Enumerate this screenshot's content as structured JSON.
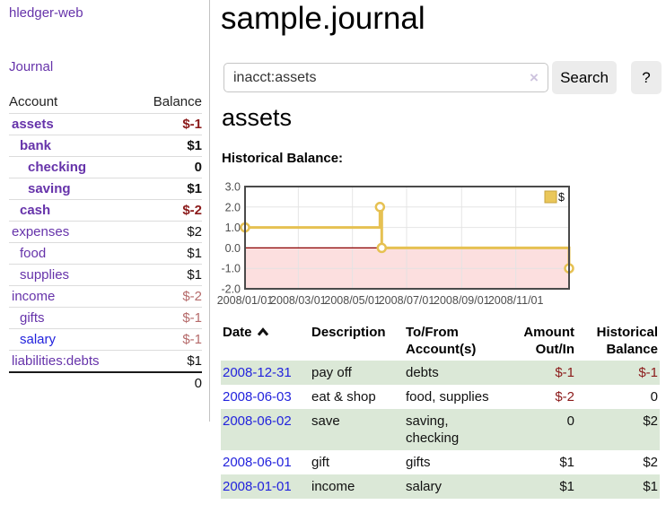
{
  "sidebar": {
    "app_title": "hledger-web",
    "journal_label": "Journal",
    "accounts_table": {
      "headers": [
        "Account",
        "Balance"
      ],
      "rows": [
        {
          "account": "assets",
          "level": 1,
          "bold": true,
          "color": "purple",
          "balance": "$-1",
          "balance_style": "negative-dark",
          "balance_bold": true
        },
        {
          "account": "bank",
          "level": 2,
          "bold": true,
          "color": "purple",
          "balance": "$1",
          "balance_style": "normal",
          "balance_bold": true
        },
        {
          "account": "checking",
          "level": 3,
          "bold": true,
          "color": "purple",
          "balance": "0",
          "balance_style": "normal",
          "balance_bold": true
        },
        {
          "account": "saving",
          "level": 3,
          "bold": true,
          "color": "purple",
          "balance": "$1",
          "balance_style": "normal",
          "balance_bold": true
        },
        {
          "account": "cash",
          "level": 2,
          "bold": true,
          "color": "purple",
          "balance": "$-2",
          "balance_style": "negative-dark",
          "balance_bold": true
        },
        {
          "account": "expenses",
          "level": 1,
          "bold": false,
          "color": "purple",
          "balance": "$2",
          "balance_style": "normal",
          "balance_bold": false
        },
        {
          "account": "food",
          "level": 2,
          "bold": false,
          "color": "purple",
          "balance": "$1",
          "balance_style": "normal",
          "balance_bold": false
        },
        {
          "account": "supplies",
          "level": 2,
          "bold": false,
          "color": "purple",
          "balance": "$1",
          "balance_style": "normal",
          "balance_bold": false
        },
        {
          "account": "income",
          "level": 1,
          "bold": false,
          "color": "purple",
          "balance": "$-2",
          "balance_style": "negative-soft",
          "balance_bold": false
        },
        {
          "account": "gifts",
          "level": 2,
          "bold": false,
          "color": "purple",
          "balance": "$-1",
          "balance_style": "negative-soft",
          "balance_bold": false
        },
        {
          "account": "salary",
          "level": 2,
          "bold": false,
          "color": "blue",
          "balance": "$-1",
          "balance_style": "negative-soft",
          "balance_bold": false
        },
        {
          "account": "liabilities:debts",
          "level": 1,
          "bold": false,
          "color": "purple",
          "balance": "$1",
          "balance_style": "normal",
          "balance_bold": false
        }
      ],
      "total": "0"
    }
  },
  "main": {
    "title": "sample.journal",
    "search": {
      "value": "inacct:assets",
      "clear_glyph": "×",
      "button_label": "Search",
      "help_label": "?"
    },
    "account_heading": "assets",
    "chart_label": "Historical Balance:",
    "register_table": {
      "columns": [
        {
          "lines": [
            "Date"
          ],
          "align": "left",
          "sorted": "asc"
        },
        {
          "lines": [
            "Description"
          ],
          "align": "left"
        },
        {
          "lines": [
            "To/From",
            "Account(s)"
          ],
          "align": "left"
        },
        {
          "lines": [
            "Amount",
            "Out/In"
          ],
          "align": "right"
        },
        {
          "lines": [
            "Historical",
            "Balance"
          ],
          "align": "right"
        }
      ],
      "rows": [
        {
          "date": "2008-12-31",
          "description": "pay off",
          "accounts": "debts",
          "amount": "$-1",
          "amount_style": "negative-dark",
          "balance": "$-1",
          "balance_style": "negative-dark"
        },
        {
          "date": "2008-06-03",
          "description": "eat & shop",
          "accounts": "food, supplies",
          "amount": "$-2",
          "amount_style": "negative-dark",
          "balance": "0",
          "balance_style": "normal"
        },
        {
          "date": "2008-06-02",
          "description": "save",
          "accounts": "saving, checking",
          "amount": "0",
          "amount_style": "normal",
          "balance": "$2",
          "balance_style": "normal"
        },
        {
          "date": "2008-06-01",
          "description": "gift",
          "accounts": "gifts",
          "amount": "$1",
          "amount_style": "normal",
          "balance": "$2",
          "balance_style": "normal"
        },
        {
          "date": "2008-01-01",
          "description": "income",
          "accounts": "salary",
          "amount": "$1",
          "amount_style": "normal",
          "balance": "$1",
          "balance_style": "normal"
        }
      ]
    }
  },
  "chart_data": {
    "type": "line",
    "title": "Historical Balance",
    "step": true,
    "series": [
      {
        "name": "$",
        "points": [
          [
            "2008-01-01",
            1
          ],
          [
            "2008-06-01",
            2
          ],
          [
            "2008-06-03",
            0
          ],
          [
            "2008-12-31",
            -1
          ]
        ]
      }
    ],
    "x_ticks": [
      {
        "date": "2008-01-01",
        "label": "2008/01/01"
      },
      {
        "date": "2008-03-01",
        "label": "2008/03/01"
      },
      {
        "date": "2008-05-01",
        "label": "2008/05/01"
      },
      {
        "date": "2008-07-01",
        "label": "2008/07/01"
      },
      {
        "date": "2008-09-01",
        "label": "2008/09/01"
      },
      {
        "date": "2008-11-01",
        "label": "2008/11/01"
      }
    ],
    "y_ticks": [
      "3.0",
      "2.0",
      "1.0",
      "0.0",
      "-1.0",
      "-2.0"
    ],
    "ylim": [
      -2,
      3
    ],
    "x_range_days": [
      "2008-01-01",
      "2008-12-31"
    ],
    "legend": {
      "label": "$",
      "position": "top-right"
    },
    "grid": true,
    "colors": {
      "line": "#e6c152",
      "marker_fill": "#ffffff",
      "negative_region": "#fcdfdf",
      "zero_line": "#8b0000",
      "grid": "#e2e2e2",
      "border": "#4a4a4a",
      "legend_fill": "#eac75a",
      "legend_border": "#c7a33c",
      "axis_text": "#4d4d4d",
      "plot_bg": "#ffffff"
    }
  }
}
